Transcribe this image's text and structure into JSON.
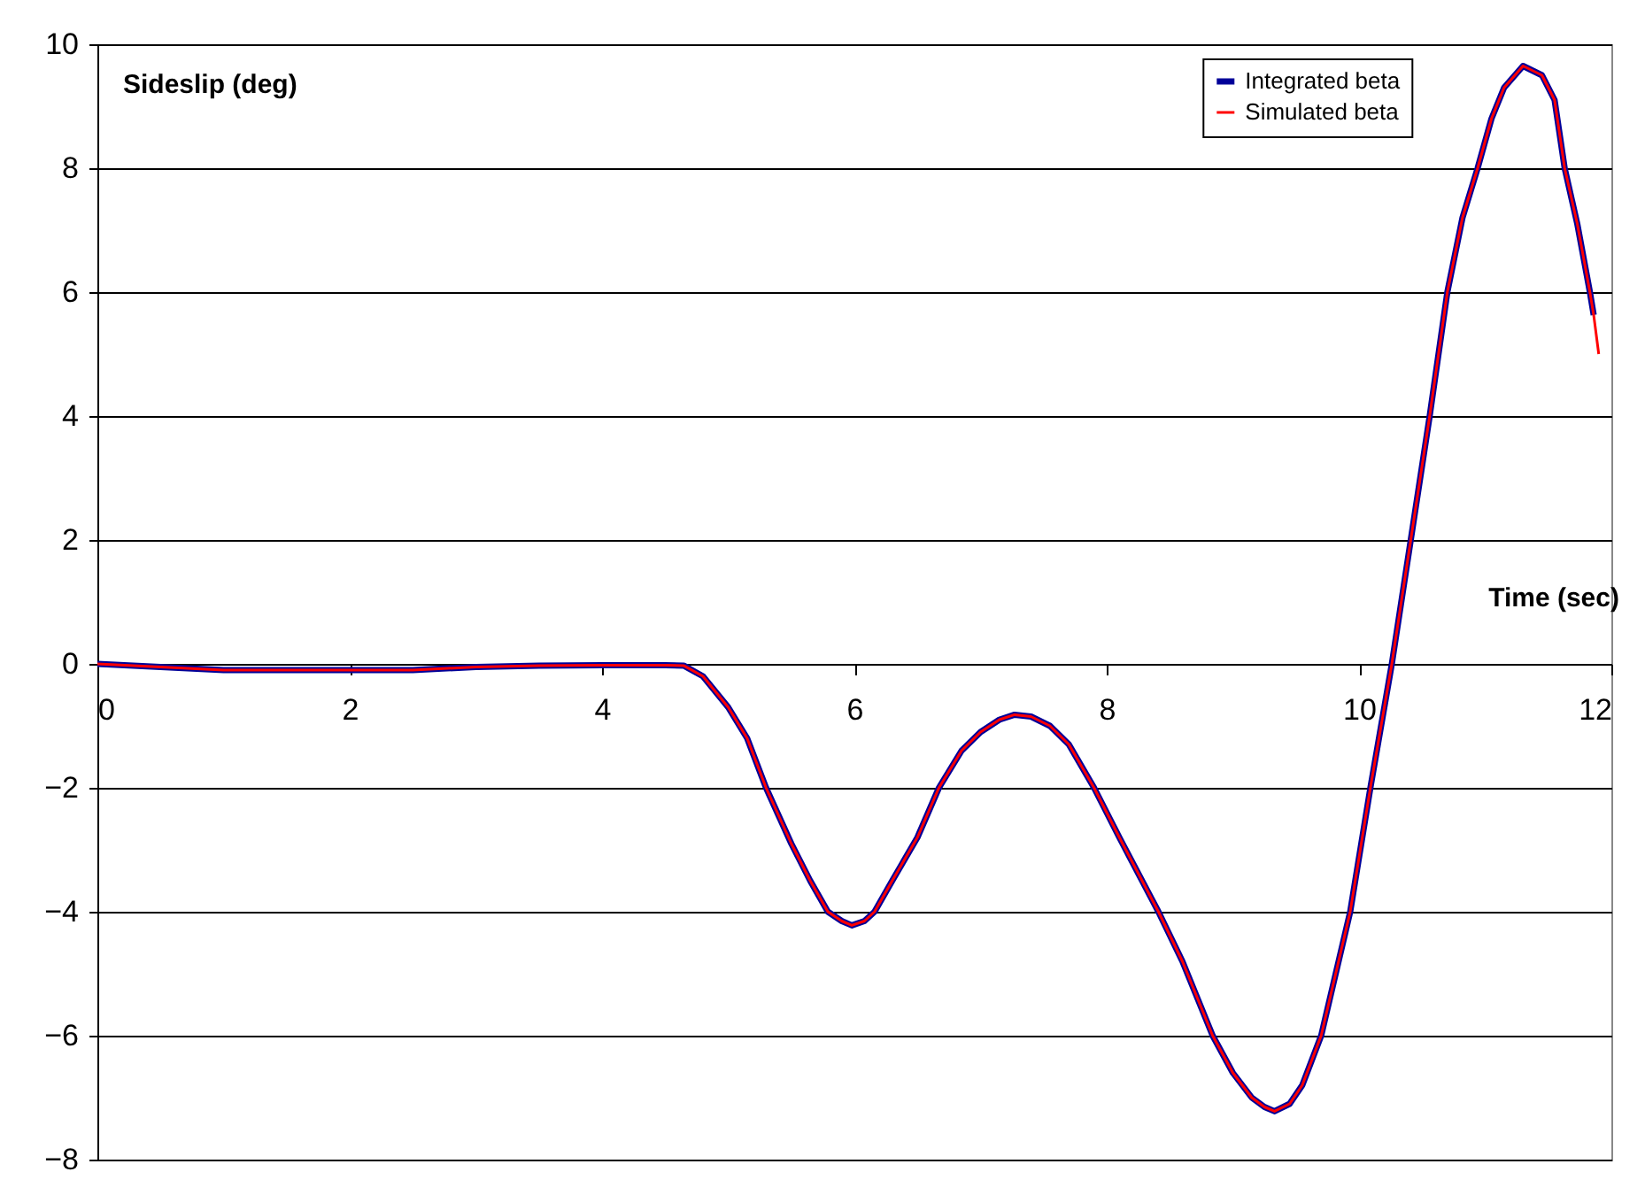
{
  "chart_data": {
    "type": "line",
    "xlabel": "Time (sec)",
    "ylabel": "Sideslip (deg)",
    "xlim": [
      0,
      12
    ],
    "xticks": [
      0,
      2,
      4,
      6,
      8,
      10,
      12
    ],
    "ylim": [
      -8,
      10
    ],
    "yticks": [
      -8,
      -6,
      -4,
      -2,
      0,
      2,
      4,
      6,
      8,
      10
    ],
    "grid": "y",
    "legend": "top right",
    "series": [
      {
        "name": "Integrated beta",
        "color": "#000099",
        "x": [
          0,
          0.5,
          1,
          1.5,
          2,
          2.5,
          3,
          3.5,
          4,
          4.5,
          4.65,
          4.8,
          5.0,
          5.15,
          5.3,
          5.5,
          5.65,
          5.79,
          5.9,
          5.98,
          6.08,
          6.16,
          6.3,
          6.5,
          6.67,
          6.85,
          7.0,
          7.15,
          7.27,
          7.4,
          7.55,
          7.7,
          7.9,
          8.1,
          8.41,
          8.6,
          8.84,
          9.0,
          9.15,
          9.25,
          9.33,
          9.45,
          9.55,
          9.7,
          9.93,
          10.09,
          10.26,
          10.41,
          10.56,
          10.7,
          10.82,
          10.94,
          11.05,
          11.15,
          11.3,
          11.45,
          11.55,
          11.63,
          11.73,
          11.83,
          11.86
        ],
        "values": [
          0,
          -0.05,
          -0.1,
          -0.1,
          -0.1,
          -0.1,
          -0.05,
          -0.03,
          -0.02,
          -0.02,
          -0.03,
          -0.2,
          -0.7,
          -1.2,
          -2.0,
          -2.9,
          -3.5,
          -4.0,
          -4.15,
          -4.22,
          -4.15,
          -4.0,
          -3.5,
          -2.8,
          -2.0,
          -1.4,
          -1.1,
          -0.9,
          -0.82,
          -0.85,
          -1.0,
          -1.3,
          -2.0,
          -2.8,
          -4.0,
          -4.8,
          -6.0,
          -6.6,
          -7.0,
          -7.15,
          -7.22,
          -7.1,
          -6.8,
          -6.0,
          -4.0,
          -2.0,
          0,
          2,
          4,
          6,
          7.2,
          8,
          8.8,
          9.3,
          9.65,
          9.5,
          9.1,
          8,
          7.1,
          6,
          5.63
        ]
      },
      {
        "name": "Simulated beta",
        "color": "#ff0000",
        "x": [
          0,
          0.5,
          1,
          1.5,
          2,
          2.5,
          3,
          3.5,
          4,
          4.5,
          4.65,
          4.8,
          5.0,
          5.15,
          5.3,
          5.5,
          5.65,
          5.79,
          5.9,
          5.98,
          6.08,
          6.16,
          6.3,
          6.5,
          6.67,
          6.85,
          7.0,
          7.15,
          7.27,
          7.4,
          7.55,
          7.7,
          7.9,
          8.1,
          8.41,
          8.6,
          8.84,
          9.0,
          9.15,
          9.25,
          9.33,
          9.45,
          9.55,
          9.7,
          9.93,
          10.09,
          10.26,
          10.41,
          10.56,
          10.7,
          10.82,
          10.94,
          11.05,
          11.15,
          11.3,
          11.45,
          11.55,
          11.63,
          11.73,
          11.83,
          11.86,
          11.9
        ],
        "values": [
          0,
          -0.05,
          -0.1,
          -0.1,
          -0.1,
          -0.1,
          -0.05,
          -0.03,
          -0.02,
          -0.02,
          -0.03,
          -0.2,
          -0.7,
          -1.2,
          -2.0,
          -2.9,
          -3.5,
          -4.0,
          -4.15,
          -4.22,
          -4.15,
          -4.0,
          -3.5,
          -2.8,
          -2.0,
          -1.4,
          -1.1,
          -0.9,
          -0.82,
          -0.85,
          -1.0,
          -1.3,
          -2.0,
          -2.8,
          -4.0,
          -4.8,
          -6.0,
          -6.6,
          -7.0,
          -7.15,
          -7.22,
          -7.1,
          -6.8,
          -6.0,
          -4.0,
          -2.0,
          0,
          2,
          4,
          6,
          7.2,
          8,
          8.8,
          9.3,
          9.65,
          9.5,
          9.1,
          8,
          7.1,
          6,
          5.63,
          5.0
        ]
      }
    ]
  }
}
